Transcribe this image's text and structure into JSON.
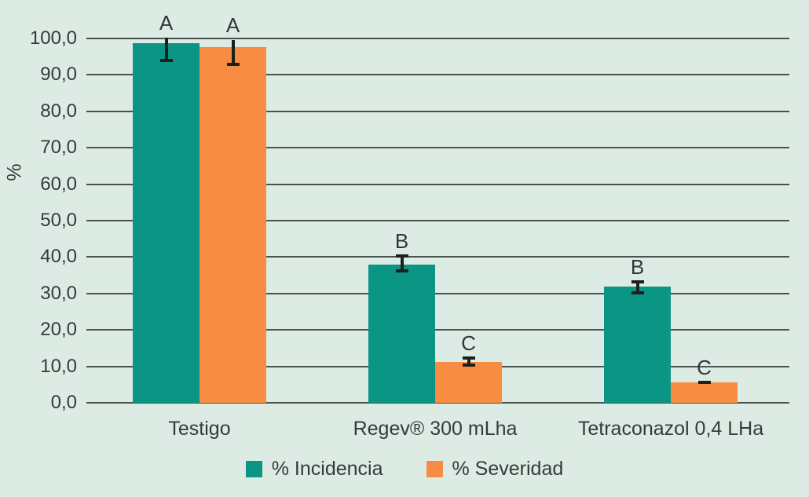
{
  "chart_data": {
    "type": "bar",
    "title": "",
    "xlabel": "",
    "ylabel": "%",
    "ylim": [
      0,
      100
    ],
    "ytick_step": 10,
    "ytick_labels": [
      "0,0",
      "10,0",
      "20,0",
      "30,0",
      "40,0",
      "50,0",
      "60,0",
      "70,0",
      "80,0",
      "90,0",
      "100,0"
    ],
    "grid": true,
    "legend_position": "bottom",
    "categories": [
      "Testigo",
      "Regev® 300 mLha",
      "Tetraconazol 0,4 LHa"
    ],
    "series": [
      {
        "name": "% Incidencia",
        "color": "#0B9584",
        "values": [
          98.6,
          38.0,
          31.8
        ],
        "letters": [
          "A",
          "B",
          "B"
        ],
        "error_bars": [
          {
            "hi": 100.2,
            "lo": 93.9,
            "cap_top": false,
            "cap_bottom": true
          },
          {
            "hi": 40.2,
            "lo": 36.1,
            "cap_top": true,
            "cap_bottom": true
          },
          {
            "hi": 33.2,
            "lo": 30.1,
            "cap_top": true,
            "cap_bottom": true
          }
        ]
      },
      {
        "name": "% Severidad",
        "color": "#F78C42",
        "values": [
          97.6,
          11.2,
          5.5
        ],
        "letters": [
          "A",
          "C",
          "C"
        ],
        "error_bars": [
          {
            "hi": 99.6,
            "lo": 92.9,
            "cap_top": false,
            "cap_bottom": true
          },
          {
            "hi": 12.2,
            "lo": 10.3,
            "cap_top": true,
            "cap_bottom": true
          },
          {
            "hi": 5.7,
            "lo": 5.5,
            "cap_top": true,
            "cap_bottom": false
          }
        ]
      }
    ],
    "colors": {
      "background": "#DCEBE3",
      "gridline": "#49534E",
      "text": "#363B39",
      "error_bar": "#1E1E1E"
    }
  }
}
